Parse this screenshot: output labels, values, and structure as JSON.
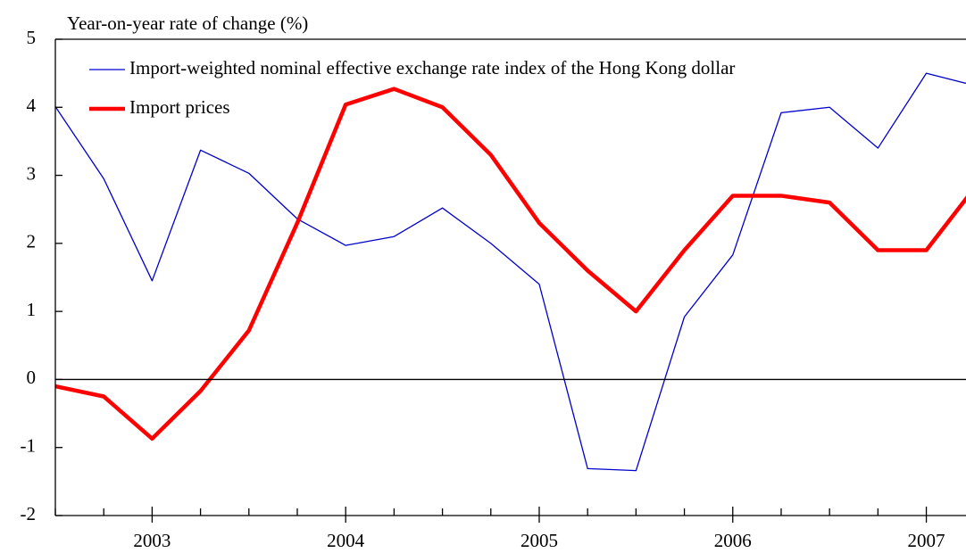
{
  "chart_data": {
    "type": "line",
    "y_label": "Year-on-year rate of change (%)",
    "x": [
      2002.5,
      2002.75,
      2003,
      2003.25,
      2003.5,
      2003.75,
      2004,
      2004.25,
      2004.5,
      2004.75,
      2005,
      2005.25,
      2005.5,
      2005.75,
      2006,
      2006.25,
      2006.5,
      2006.75,
      2007,
      2007.25
    ],
    "series": [
      {
        "name": "Import-weighted nominal effective exchange rate index of the Hong Kong dollar",
        "color": "#0000cc",
        "width": 1.3,
        "values": [
          4.01,
          2.95,
          1.45,
          3.37,
          3.03,
          2.36,
          1.97,
          2.1,
          2.52,
          2.0,
          1.4,
          -1.31,
          -1.34,
          0.92,
          1.83,
          3.92,
          4.0,
          3.4,
          4.5,
          4.32
        ]
      },
      {
        "name": "Import prices",
        "color": "#ff0000",
        "width": 4.5,
        "values": [
          -0.1,
          -0.25,
          -0.87,
          -0.17,
          0.72,
          2.3,
          4.04,
          4.27,
          4.0,
          3.3,
          2.3,
          1.6,
          1.0,
          1.9,
          2.7,
          2.7,
          2.6,
          1.9,
          1.9,
          2.82
        ]
      }
    ],
    "xlim": [
      2002.5,
      2007.205
    ],
    "ylim": [
      -2,
      5
    ],
    "xticks": [
      2003,
      2004,
      2005,
      2006,
      2007
    ],
    "xminorticks": [
      2002.5,
      2002.75,
      2003.25,
      2003.5,
      2003.75,
      2004.25,
      2004.5,
      2004.75,
      2005.25,
      2005.5,
      2005.75,
      2006.25,
      2006.5,
      2006.75
    ],
    "yticks": [
      -2,
      -1,
      0,
      1,
      2,
      3,
      4,
      5
    ],
    "zero_line": true,
    "legend": "upper left"
  }
}
